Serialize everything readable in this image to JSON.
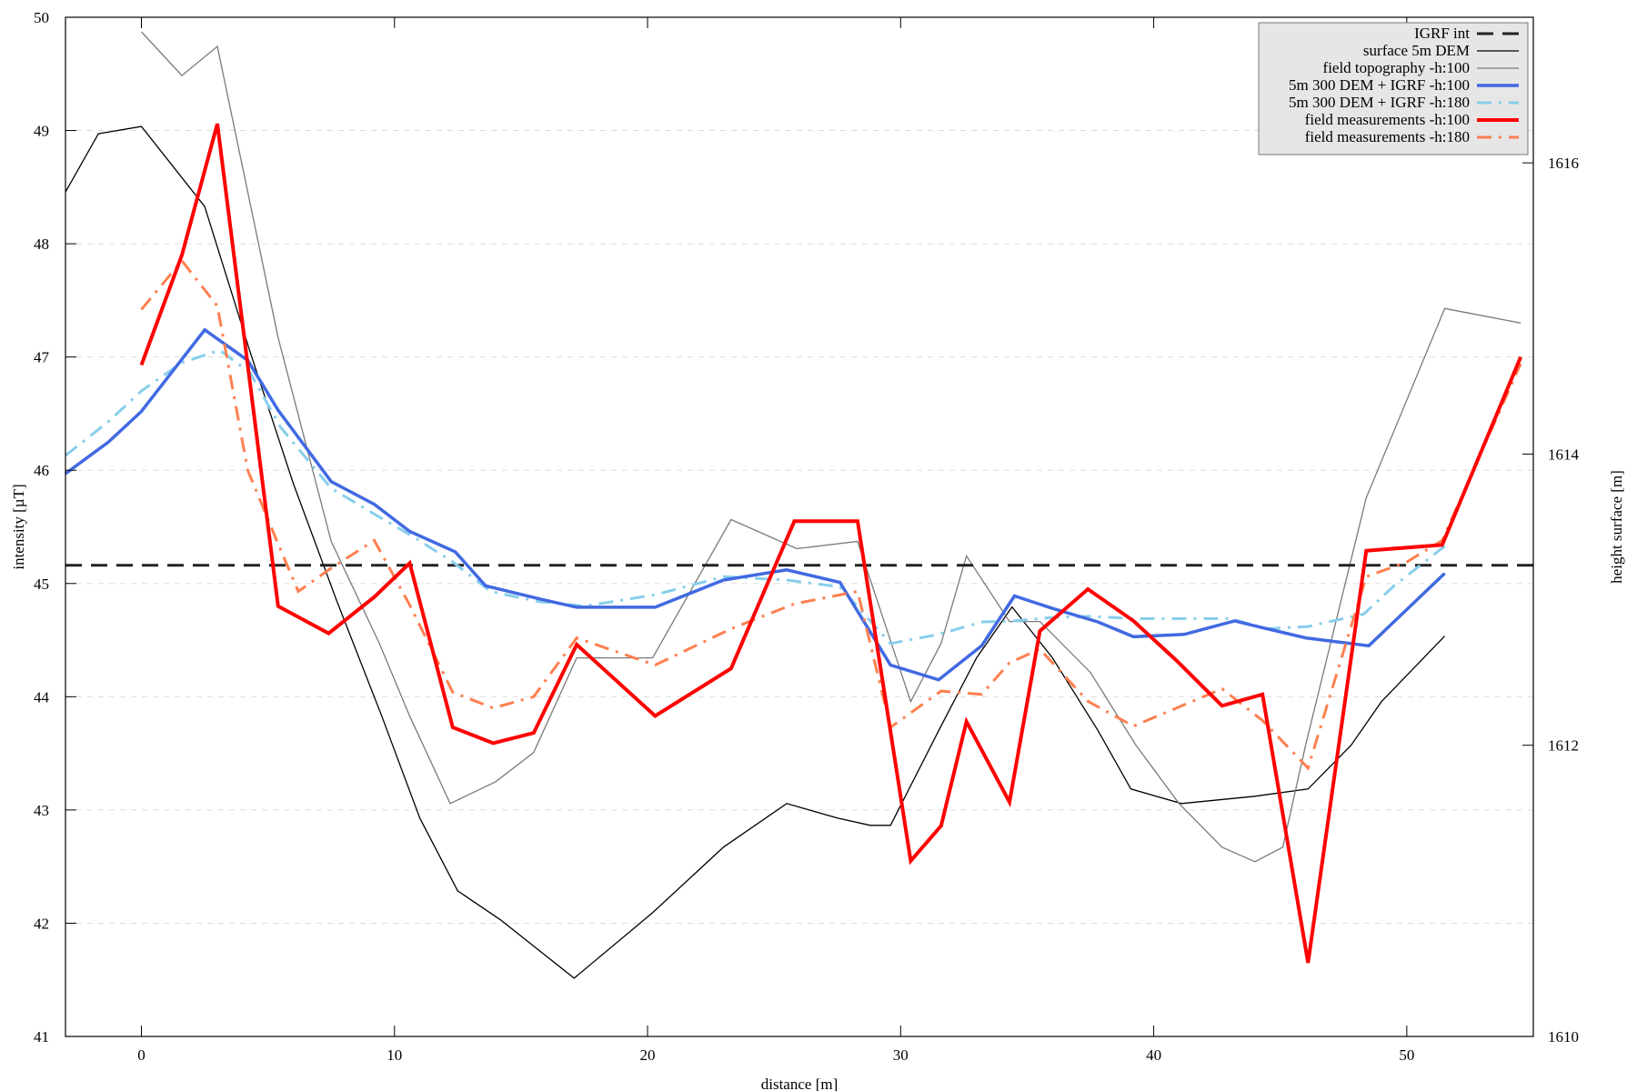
{
  "chart_data": {
    "type": "line",
    "title": "",
    "xlabel": "distance [m]",
    "ylabel": "intensity [µT]",
    "y2label": "height surface [m]",
    "xlim": [
      -3,
      55
    ],
    "ylim": [
      41,
      50
    ],
    "y2lim": [
      1610,
      1617
    ],
    "xticks": [
      0,
      10,
      20,
      30,
      40,
      50
    ],
    "yticks": [
      41,
      42,
      43,
      44,
      45,
      46,
      47,
      48,
      49,
      50
    ],
    "y2ticks": [
      1610,
      1612,
      1614,
      1616
    ],
    "grid": "horizontal dashed",
    "legend_position": "top-right",
    "series": [
      {
        "name": "IGRF int",
        "axis": "left",
        "color": "#222222",
        "style": "dashed",
        "width": 3,
        "x": [
          -3,
          55
        ],
        "y": [
          45.16,
          45.16
        ]
      },
      {
        "name": "surface 5m DEM",
        "axis": "right",
        "color": "#000000",
        "style": "solid",
        "width": 1.3,
        "x": [
          -3,
          -1.7,
          0,
          2.5,
          4.3,
          6,
          7.7,
          9.5,
          11,
          12.5,
          14.2,
          17.1,
          20.2,
          23,
          25.5,
          27.5,
          28.8,
          29.6,
          31.5,
          33,
          34.4,
          36,
          37.8,
          39.1,
          41.1,
          44,
          46.1,
          47.8,
          49,
          51.5
        ],
        "y": [
          1615.8,
          1616.2,
          1616.25,
          1615.7,
          1614.7,
          1613.8,
          1613.0,
          1612.2,
          1611.5,
          1611.0,
          1610.8,
          1610.4,
          1610.85,
          1611.3,
          1611.6,
          1611.5,
          1611.45,
          1611.45,
          1612.1,
          1612.6,
          1612.95,
          1612.6,
          1612.1,
          1611.7,
          1611.6,
          1611.65,
          1611.7,
          1612.0,
          1612.3,
          1612.75
        ]
      },
      {
        "name": "field topography -h:100",
        "axis": "right",
        "color": "#7a7a7a",
        "style": "solid",
        "width": 1.3,
        "x": [
          0,
          1.6,
          3,
          5.4,
          7.5,
          9.4,
          10.6,
          12.2,
          14,
          15.5,
          17.2,
          20.2,
          23.3,
          25.9,
          28.3,
          30.4,
          31.6,
          32.6,
          34.3,
          35.5,
          37.5,
          39.3,
          41,
          42.7,
          44,
          45.1,
          46,
          48.4,
          51.5,
          54.5
        ],
        "y": [
          1616.9,
          1616.6,
          1616.8,
          1614.8,
          1613.4,
          1612.7,
          1612.2,
          1611.6,
          1611.75,
          1611.95,
          1612.6,
          1612.6,
          1613.55,
          1613.35,
          1613.4,
          1612.3,
          1612.7,
          1613.3,
          1612.85,
          1612.85,
          1612.5,
          1612.0,
          1611.6,
          1611.3,
          1611.2,
          1611.3,
          1612.0,
          1613.7,
          1615.0,
          1614.9
        ]
      },
      {
        "name": "5m 300 DEM + IGRF -h:100",
        "axis": "left",
        "color": "#4169e1",
        "style": "solid",
        "width": 3.5,
        "x": [
          -3,
          -1.3,
          0,
          2.5,
          4.2,
          5.4,
          7.5,
          9.2,
          10.6,
          12.4,
          13.6,
          15.8,
          17.2,
          20.3,
          23,
          25.5,
          27.6,
          29.6,
          31.5,
          33.2,
          34.5,
          36,
          37.8,
          39.2,
          41.2,
          43.2,
          44.3,
          46,
          48.5,
          51.5
        ],
        "y": [
          45.97,
          46.25,
          46.52,
          47.24,
          46.97,
          46.53,
          45.9,
          45.7,
          45.46,
          45.28,
          44.98,
          44.86,
          44.79,
          44.79,
          45.03,
          45.12,
          45.01,
          44.28,
          44.15,
          44.45,
          44.89,
          44.78,
          44.66,
          44.53,
          44.55,
          44.67,
          44.61,
          44.52,
          44.45,
          45.09
        ]
      },
      {
        "name": "5m 300 DEM + IGRF -h:180",
        "axis": "left",
        "color": "#87ceeb",
        "style": "dashdot",
        "width": 3,
        "x": [
          -3,
          -1.3,
          0,
          1.6,
          3.1,
          4.3,
          5.5,
          7.5,
          9.3,
          10.7,
          12.3,
          13.8,
          15.7,
          17.5,
          20.3,
          23,
          25.5,
          27.6,
          29.6,
          31.5,
          33.2,
          34.5,
          36,
          37.5,
          39.2,
          41.2,
          43,
          44.5,
          46.1,
          48.3,
          49.5,
          51.5
        ],
        "y": [
          46.13,
          46.43,
          46.7,
          46.95,
          47.06,
          46.86,
          46.38,
          45.84,
          45.6,
          45.42,
          45.19,
          44.93,
          44.84,
          44.8,
          44.9,
          45.06,
          45.03,
          44.97,
          44.47,
          44.55,
          44.66,
          44.67,
          44.7,
          44.71,
          44.69,
          44.69,
          44.69,
          44.6,
          44.62,
          44.73,
          44.98,
          45.33
        ]
      },
      {
        "name": "field measurements -h:100",
        "axis": "left",
        "color": "#ff0000",
        "style": "solid",
        "width": 4,
        "x": [
          0,
          1.6,
          3,
          5.4,
          7.4,
          9.2,
          10.6,
          12.3,
          13.9,
          15.5,
          17.2,
          20.3,
          23.3,
          25.8,
          28.3,
          30.4,
          31.6,
          32.6,
          34.3,
          35.5,
          37.4,
          39.2,
          40.9,
          42.7,
          44.3,
          46.1,
          48.4,
          51.4,
          54.5
        ],
        "y": [
          46.93,
          47.9,
          49.06,
          44.8,
          44.56,
          44.88,
          45.18,
          43.73,
          43.59,
          43.68,
          44.46,
          43.83,
          44.25,
          45.55,
          45.55,
          42.55,
          42.86,
          43.78,
          43.07,
          44.58,
          44.95,
          44.67,
          44.32,
          43.92,
          44.02,
          41.65,
          45.29,
          45.34,
          47.0
        ]
      },
      {
        "name": "field measurements -h:180",
        "axis": "left",
        "color": "#ff7f50",
        "style": "dashdot",
        "width": 3,
        "x": [
          0,
          1.6,
          3,
          4.2,
          5.4,
          6.2,
          7.4,
          9.2,
          10.6,
          12.3,
          13.9,
          15.5,
          17.2,
          20.3,
          23.3,
          25.8,
          28.3,
          29.6,
          31.6,
          33.2,
          34.3,
          35.5,
          37.4,
          39.2,
          40.9,
          42.7,
          44.3,
          46.1,
          48.4,
          50,
          51.4,
          54.5
        ],
        "y": [
          47.42,
          47.85,
          47.45,
          46.0,
          45.35,
          44.93,
          45.12,
          45.38,
          44.81,
          44.04,
          43.9,
          44.0,
          44.52,
          44.28,
          44.6,
          44.82,
          44.93,
          43.73,
          44.05,
          44.02,
          44.3,
          44.42,
          43.96,
          43.74,
          43.9,
          44.07,
          43.79,
          43.37,
          45.06,
          45.19,
          45.38,
          46.94
        ]
      }
    ]
  }
}
